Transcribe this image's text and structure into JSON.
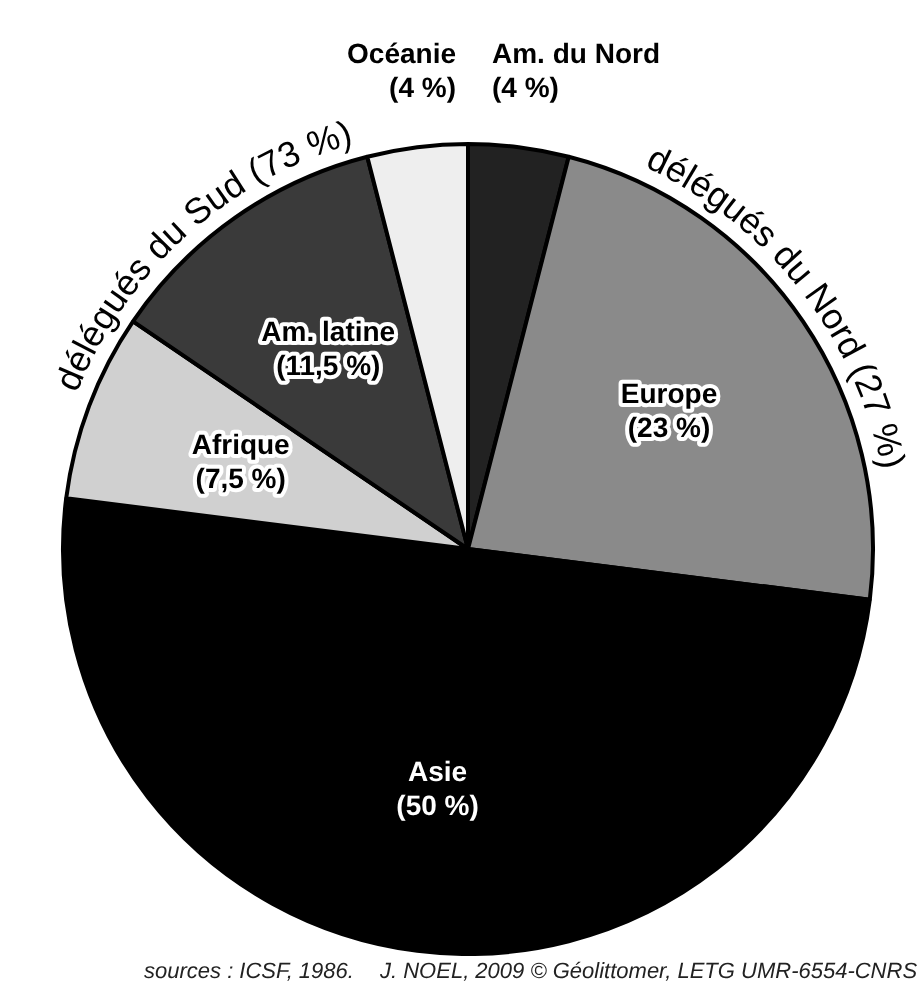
{
  "chart_data": {
    "type": "pie",
    "categories": [
      "Am. du Nord",
      "Europe",
      "Asie",
      "Afrique",
      "Am. latine",
      "Océanie"
    ],
    "values": [
      4,
      23,
      50,
      7.5,
      11.5,
      4
    ],
    "value_labels": [
      "(4 %)",
      "(23 %)",
      "(50 %)",
      "(7,5 %)",
      "(11,5 %)",
      "(4 %)"
    ],
    "colors": [
      "#222222",
      "#8a8a8a",
      "#000000",
      "#d0d0d0",
      "#3a3a3a",
      "#eeeeee"
    ],
    "annotations": [
      "délégués du Nord (27 %)",
      "délégués du Sud (73 %)",
      "sources : ICSF, 1986.",
      "J. NOEL, 2009 © Géolittomer, LETG UMR-6554-CNRS"
    ],
    "legend": false
  }
}
